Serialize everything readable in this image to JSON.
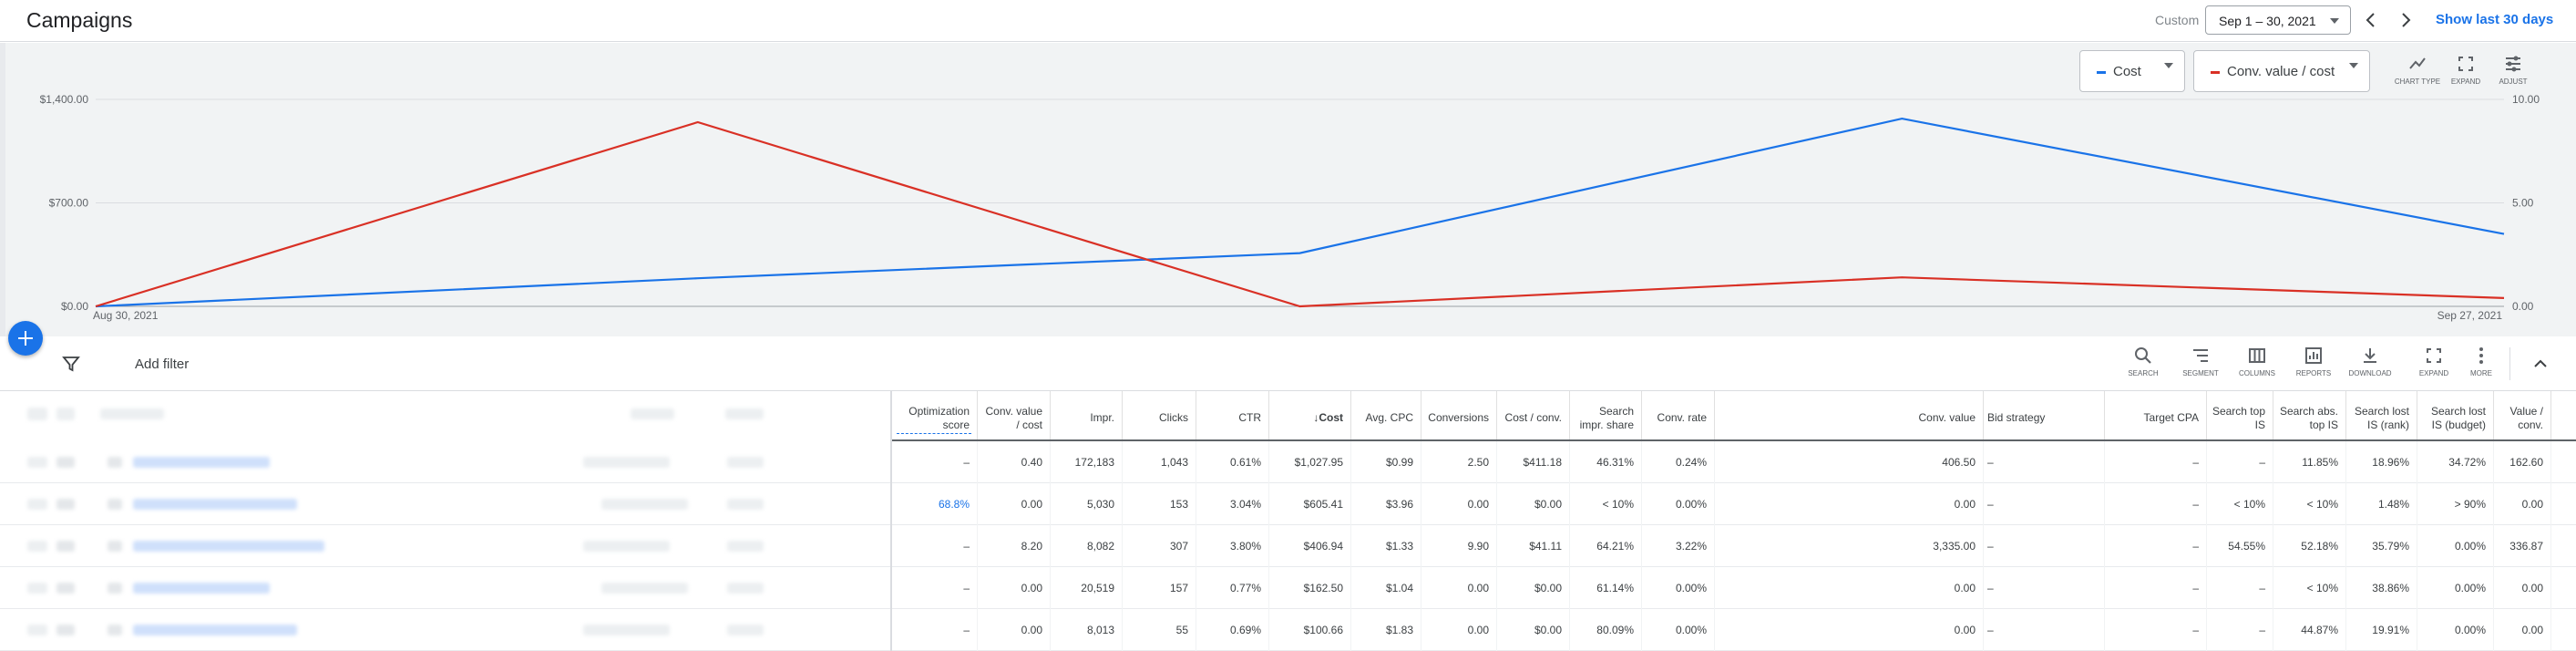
{
  "header": {
    "title": "Campaigns",
    "date_caption": "Custom",
    "date_range": "Sep 1 – 30, 2021",
    "show_last": "Show last 30 days"
  },
  "chart": {
    "legend": [
      {
        "label": "Cost",
        "color": "#1a73e8"
      },
      {
        "label": "Conv. value / cost",
        "color": "#d93025"
      }
    ],
    "tools": [
      "CHART TYPE",
      "EXPAND",
      "ADJUST"
    ],
    "y_left_ticks": [
      "$1,400.00",
      "$700.00",
      "$0.00"
    ],
    "y_right_ticks": [
      "10.00",
      "5.00",
      "0.00"
    ],
    "x_labels": [
      "Aug 30, 2021",
      "Sep 27, 2021"
    ]
  },
  "chart_data": {
    "type": "line",
    "x": [
      "Aug 30, 2021",
      "Sep 6, 2021",
      "Sep 13, 2021",
      "Sep 20, 2021",
      "Sep 27, 2021"
    ],
    "series": [
      {
        "name": "Cost",
        "axis": "left",
        "color": "#1a73e8",
        "values": [
          0,
          190,
          360,
          1270,
          490
        ]
      },
      {
        "name": "Conv. value / cost",
        "axis": "right",
        "color": "#d93025",
        "values": [
          0,
          8.9,
          0,
          1.4,
          0.4
        ]
      }
    ],
    "ylim_left": [
      0,
      1400
    ],
    "ylim_right": [
      0,
      10
    ],
    "grid": true
  },
  "filter_bar": {
    "add_filter": "Add filter",
    "tools": [
      "SEARCH",
      "SEGMENT",
      "COLUMNS",
      "REPORTS",
      "DOWNLOAD",
      "EXPAND",
      "MORE"
    ]
  },
  "table": {
    "columns": [
      "Optimization score",
      "Conv. value / cost",
      "Impr.",
      "Clicks",
      "CTR",
      "Cost",
      "Avg. CPC",
      "Conversions",
      "Cost / conv.",
      "Search impr. share",
      "Conv. rate",
      "Conv. value",
      "Bid strategy",
      "Target CPA",
      "Search top IS",
      "Search abs. top IS",
      "Search lost IS (rank)",
      "Search lost IS (budget)",
      "Value / conv."
    ],
    "rows": [
      [
        "–",
        "0.40",
        "172,183",
        "1,043",
        "0.61%",
        "$1,027.95",
        "$0.99",
        "2.50",
        "$411.18",
        "46.31%",
        "0.24%",
        "406.50",
        "–",
        "–",
        "–",
        "11.85%",
        "18.96%",
        "34.72%",
        "162.60"
      ],
      [
        "68.8%",
        "0.00",
        "5,030",
        "153",
        "3.04%",
        "$605.41",
        "$3.96",
        "0.00",
        "$0.00",
        "< 10%",
        "0.00%",
        "0.00",
        "–",
        "–",
        "< 10%",
        "< 10%",
        "1.48%",
        "> 90%",
        "0.00"
      ],
      [
        "–",
        "8.20",
        "8,082",
        "307",
        "3.80%",
        "$406.94",
        "$1.33",
        "9.90",
        "$41.11",
        "64.21%",
        "3.22%",
        "3,335.00",
        "–",
        "–",
        "54.55%",
        "52.18%",
        "35.79%",
        "0.00%",
        "336.87"
      ],
      [
        "–",
        "0.00",
        "20,519",
        "157",
        "0.77%",
        "$162.50",
        "$1.04",
        "0.00",
        "$0.00",
        "61.14%",
        "0.00%",
        "0.00",
        "–",
        "–",
        "–",
        "< 10%",
        "38.86%",
        "0.00%",
        "0.00"
      ],
      [
        "–",
        "0.00",
        "8,013",
        "55",
        "0.69%",
        "$100.66",
        "$1.83",
        "0.00",
        "$0.00",
        "80.09%",
        "0.00%",
        "0.00",
        "–",
        "–",
        "–",
        "44.87%",
        "19.91%",
        "0.00%",
        "0.00"
      ]
    ]
  }
}
